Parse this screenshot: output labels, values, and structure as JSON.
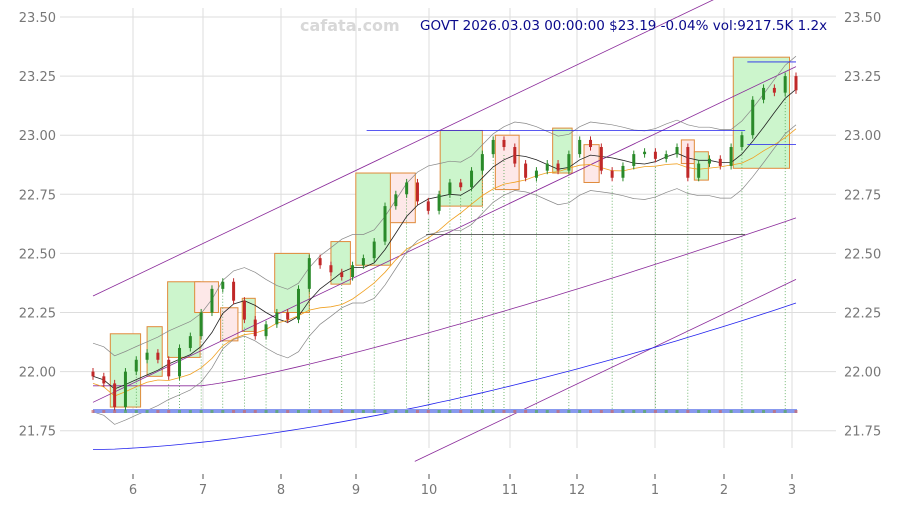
{
  "header": {
    "watermark": "cafata.com",
    "title": "GOVT 2026.03.03 00:00:00 $23.19 -0.04% vol:9217.5K 1.2x"
  },
  "chart_data": {
    "type": "candlestick",
    "symbol": "GOVT",
    "last_date": "2026.03.03",
    "last_price": 23.19,
    "change_pct": -0.04,
    "volume": "9217.5K",
    "volume_ratio": "1.2x",
    "x_ticks": [
      "6",
      "7",
      "8",
      "9",
      "10",
      "11",
      "12",
      "1",
      "2",
      "3"
    ],
    "y_ticks": [
      21.75,
      22.0,
      22.25,
      22.5,
      22.75,
      23.0,
      23.25,
      23.5
    ],
    "ylim": [
      21.62,
      23.52
    ],
    "grid": true,
    "closes": [
      21.98,
      21.95,
      21.85,
      22.0,
      22.05,
      22.08,
      22.05,
      21.98,
      22.1,
      22.15,
      22.25,
      22.35,
      22.38,
      22.3,
      22.22,
      22.15,
      22.2,
      22.25,
      22.22,
      22.35,
      22.48,
      22.45,
      22.42,
      22.4,
      22.45,
      22.48,
      22.55,
      22.7,
      22.75,
      22.8,
      22.72,
      22.68,
      22.75,
      22.8,
      22.78,
      22.85,
      22.92,
      22.98,
      22.95,
      22.88,
      22.82,
      22.85,
      22.88,
      22.85,
      22.92,
      22.98,
      22.95,
      22.85,
      22.82,
      22.87,
      22.92,
      22.93,
      22.9,
      22.92,
      22.95,
      22.82,
      22.88,
      22.9,
      22.87,
      22.95,
      23.0,
      23.15,
      23.2,
      23.18,
      23.25,
      23.19
    ],
    "boxes": [
      [
        1.6,
        4.4,
        21.85,
        22.16,
        "up"
      ],
      [
        5,
        6.4,
        21.98,
        22.19,
        "up"
      ],
      [
        6.9,
        9.9,
        22.06,
        22.38,
        "up"
      ],
      [
        9.4,
        11.6,
        22.25,
        22.38,
        "down"
      ],
      [
        11.8,
        13.4,
        22.13,
        22.27,
        "down"
      ],
      [
        13.8,
        15,
        22.17,
        22.31,
        "up"
      ],
      [
        16.8,
        20,
        22.25,
        22.5,
        "up"
      ],
      [
        22,
        23.8,
        22.37,
        22.55,
        "up"
      ],
      [
        24.3,
        27.5,
        22.45,
        22.84,
        "up"
      ],
      [
        27.5,
        29.8,
        22.63,
        22.84,
        "down"
      ],
      [
        32.1,
        36,
        22.7,
        23.02,
        "up"
      ],
      [
        37.2,
        39.4,
        22.77,
        23.0,
        "down"
      ],
      [
        42.5,
        44.3,
        22.84,
        23.03,
        "up"
      ],
      [
        45.4,
        46.8,
        22.8,
        22.96,
        "down"
      ],
      [
        54.4,
        55.6,
        22.88,
        22.98,
        "down"
      ],
      [
        55.6,
        56.9,
        22.81,
        22.93,
        "up"
      ],
      [
        59.2,
        64.4,
        22.86,
        23.33,
        "up"
      ]
    ],
    "levels": [
      {
        "from": 25.3,
        "to": 60.3,
        "price": 23.02,
        "color": "#2222ee"
      },
      {
        "from": 30.8,
        "to": 60.3,
        "price": 22.58,
        "color": "#333333"
      },
      {
        "from": 60.5,
        "to": 65,
        "price": 23.31,
        "color": "#2222ee"
      },
      {
        "from": 60.5,
        "to": 65,
        "price": 22.96,
        "color": "#2222ee"
      }
    ],
    "colors": {
      "up": "#2a8a2a",
      "down": "#c02828",
      "box_up": "#ccf5cc",
      "box_down": "#fde8e8",
      "box_edge": "#e08a3a",
      "channel": "#8a2a9a",
      "long_ma": "#2222ee",
      "ma_short": "#222222",
      "ma_mid": "#f0a020",
      "band": "#888888"
    }
  }
}
